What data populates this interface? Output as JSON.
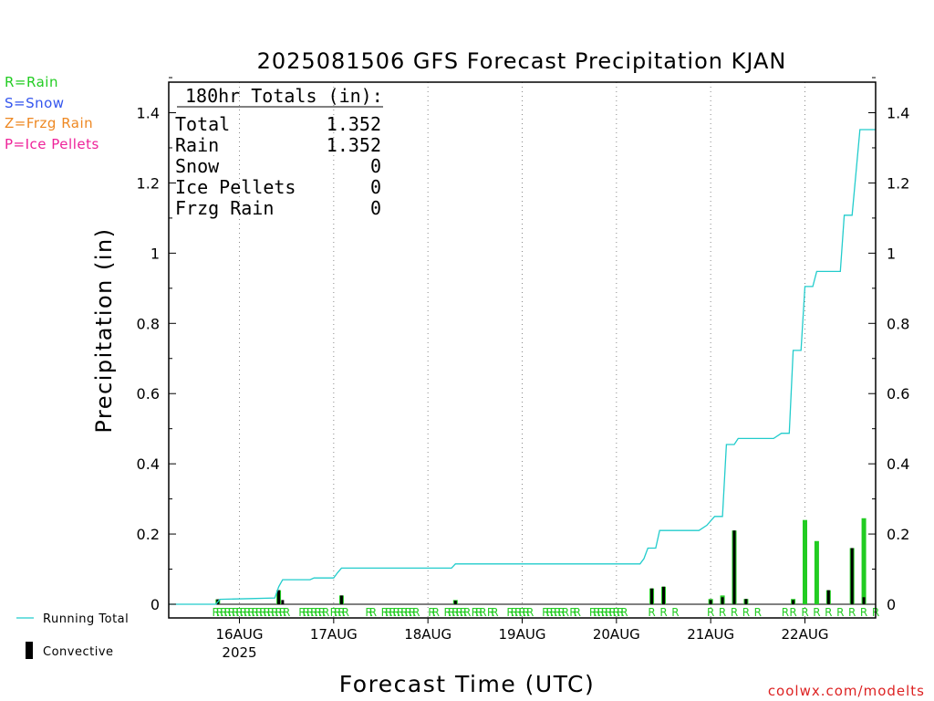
{
  "legend_types": [
    {
      "label": "R=Rain",
      "color": "#22cc22"
    },
    {
      "label": "S=Snow",
      "color": "#3355ee"
    },
    {
      "label": "Z=Frzg Rain",
      "color": "#ee8822"
    },
    {
      "label": "P=Ice Pellets",
      "color": "#ee2299"
    }
  ],
  "legend_bottom": {
    "running_total": "Running Total",
    "convective": "Convective"
  },
  "credit": "coolwx.com/modelts",
  "totals_box": {
    "header": "180hr Totals (in):",
    "rows": [
      {
        "label": "Total",
        "value": "1.352"
      },
      {
        "label": "Rain",
        "value": "1.352"
      },
      {
        "label": "Snow",
        "value": "0"
      },
      {
        "label": "Ice Pellets",
        "value": "0"
      },
      {
        "label": "Frzg Rain",
        "value": "0"
      }
    ]
  },
  "chart_data": {
    "type": "bar",
    "title": "2025081506 GFS Forecast Precipitation KJAN",
    "xlabel": "Forecast Time (UTC)",
    "ylabel": "Precipitation (in)",
    "ylim": [
      0,
      1.5
    ],
    "yticks": [
      0,
      0.2,
      0.4,
      0.6,
      0.8,
      1.0,
      1.2,
      1.4
    ],
    "ytick_labels": [
      "0",
      "0.2",
      "0.4",
      "0.6",
      "0.8",
      "1",
      "1.2",
      "1.4"
    ],
    "x_unit": "hours since 2025-08-15 06 UTC",
    "xlim": [
      0,
      180
    ],
    "day_ticks": [
      {
        "hour": 18,
        "label": "16AUG",
        "sublabel": "2025"
      },
      {
        "hour": 42,
        "label": "17AUG",
        "sublabel": ""
      },
      {
        "hour": 66,
        "label": "18AUG",
        "sublabel": ""
      },
      {
        "hour": 90,
        "label": "19AUG",
        "sublabel": ""
      },
      {
        "hour": 114,
        "label": "20AUG",
        "sublabel": ""
      },
      {
        "hour": 138,
        "label": "21AUG",
        "sublabel": ""
      },
      {
        "hour": 162,
        "label": "22AUG",
        "sublabel": ""
      }
    ],
    "grid": "vertical dotted at day boundaries",
    "colors": {
      "running_total": "#22cccc",
      "rain": "#22cc22",
      "convective": "#000000",
      "axis": "#000000"
    },
    "running_total": [
      [
        0,
        0
      ],
      [
        12,
        0
      ],
      [
        13,
        0.014
      ],
      [
        21,
        0.016
      ],
      [
        27,
        0.018
      ],
      [
        28,
        0.05
      ],
      [
        29,
        0.07
      ],
      [
        36,
        0.07
      ],
      [
        37,
        0.075
      ],
      [
        42,
        0.075
      ],
      [
        43,
        0.09
      ],
      [
        44,
        0.103
      ],
      [
        72,
        0.103
      ],
      [
        73,
        0.115
      ],
      [
        120,
        0.115
      ],
      [
        121,
        0.13
      ],
      [
        122,
        0.16
      ],
      [
        124,
        0.16
      ],
      [
        125,
        0.21
      ],
      [
        135,
        0.21
      ],
      [
        137,
        0.225
      ],
      [
        139,
        0.25
      ],
      [
        141,
        0.25
      ],
      [
        142,
        0.455
      ],
      [
        144,
        0.455
      ],
      [
        145,
        0.472
      ],
      [
        154,
        0.472
      ],
      [
        156,
        0.487
      ],
      [
        158,
        0.487
      ],
      [
        159,
        0.723
      ],
      [
        161,
        0.723
      ],
      [
        162,
        0.905
      ],
      [
        164,
        0.905
      ],
      [
        165,
        0.948
      ],
      [
        171,
        0.948
      ],
      [
        172,
        1.108
      ],
      [
        174,
        1.108
      ],
      [
        176,
        1.352
      ],
      [
        180,
        1.352
      ]
    ],
    "rain_bars": [
      {
        "hour": 12.5,
        "value": 0.014
      },
      {
        "hour": 28,
        "value": 0.04
      },
      {
        "hour": 44,
        "value": 0.025
      },
      {
        "hour": 73,
        "value": 0.012
      },
      {
        "hour": 123,
        "value": 0.045
      },
      {
        "hour": 126,
        "value": 0.05
      },
      {
        "hour": 138,
        "value": 0.015
      },
      {
        "hour": 141,
        "value": 0.025
      },
      {
        "hour": 144,
        "value": 0.21
      },
      {
        "hour": 147,
        "value": 0.015
      },
      {
        "hour": 159,
        "value": 0.015
      },
      {
        "hour": 162,
        "value": 0.24
      },
      {
        "hour": 165,
        "value": 0.18
      },
      {
        "hour": 168,
        "value": 0.04
      },
      {
        "hour": 174,
        "value": 0.16
      },
      {
        "hour": 177,
        "value": 0.245
      }
    ],
    "convective_bars": [
      {
        "hour": 12.5,
        "value": 0.014
      },
      {
        "hour": 28,
        "value": 0.04
      },
      {
        "hour": 29,
        "value": 0.012
      },
      {
        "hour": 44,
        "value": 0.025
      },
      {
        "hour": 73,
        "value": 0.01
      },
      {
        "hour": 123,
        "value": 0.045
      },
      {
        "hour": 126,
        "value": 0.05
      },
      {
        "hour": 138,
        "value": 0.012
      },
      {
        "hour": 141,
        "value": 0.02
      },
      {
        "hour": 144,
        "value": 0.21
      },
      {
        "hour": 147,
        "value": 0.015
      },
      {
        "hour": 159,
        "value": 0.012
      },
      {
        "hour": 168,
        "value": 0.04
      },
      {
        "hour": 174,
        "value": 0.16
      },
      {
        "hour": 177,
        "value": 0.02
      }
    ],
    "ptype_marks": {
      "symbol": "R",
      "hours": [
        12,
        13,
        14,
        15,
        16,
        17,
        18,
        19,
        20,
        21,
        22,
        23,
        24,
        25,
        26,
        27,
        28,
        29,
        30,
        34,
        35,
        36,
        37,
        38,
        39,
        40,
        42,
        43,
        44,
        45,
        51,
        52,
        55,
        56,
        57,
        58,
        59,
        60,
        61,
        62,
        63,
        67,
        68,
        71,
        72,
        73,
        74,
        75,
        76,
        78,
        79,
        80,
        82,
        83,
        87,
        88,
        89,
        90,
        91,
        92,
        96,
        97,
        98,
        99,
        100,
        101,
        103,
        104,
        108,
        109,
        110,
        111,
        112,
        113,
        114,
        115,
        116,
        123,
        126,
        129,
        138,
        141,
        144,
        147,
        150,
        157,
        159,
        162,
        165,
        168,
        171,
        174,
        177,
        180
      ]
    }
  }
}
